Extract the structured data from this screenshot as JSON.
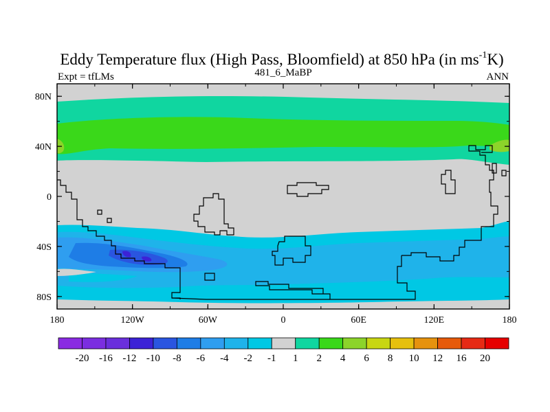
{
  "chart_data": {
    "type": "heatmap",
    "title": "Eddy Temperature flux (High Pass, Bloomfield) at 850 hPa (in ms",
    "title_superscript": "-1",
    "title_suffix": "K)",
    "left_label": "Expt = tfLMs",
    "center_label": "481_6_MaBP",
    "right_label": "ANN",
    "x_ticks": [
      "180",
      "120W",
      "60W",
      "0",
      "60E",
      "120E",
      "180"
    ],
    "y_ticks": [
      "80N",
      "40N",
      "0",
      "40S",
      "80S"
    ],
    "colorbar_labels": [
      "-20",
      "-16",
      "-12",
      "-10",
      "-8",
      "-6",
      "-4",
      "-2",
      "-1",
      "1",
      "2",
      "4",
      "6",
      "8",
      "10",
      "12",
      "16",
      "20"
    ],
    "colorbar_colors": [
      "#8a2be2",
      "#7b2ee0",
      "#6a2fdc",
      "#3c22d6",
      "#2a55e0",
      "#1e7de6",
      "#2f9ef0",
      "#1fb3ea",
      "#00c8e4",
      "#d2d2d2",
      "#10d6a0",
      "#3ad81a",
      "#8cd42a",
      "#c8d612",
      "#e6c00e",
      "#e6920e",
      "#e65a0a",
      "#e62a14",
      "#e60000"
    ],
    "levels": [
      -20,
      -16,
      -12,
      -10,
      -8,
      -6,
      -4,
      -2,
      -1,
      1,
      2,
      4,
      6,
      8,
      10,
      12,
      16,
      20
    ],
    "x_range": [
      -180,
      180
    ],
    "y_range": [
      -90,
      90
    ]
  }
}
